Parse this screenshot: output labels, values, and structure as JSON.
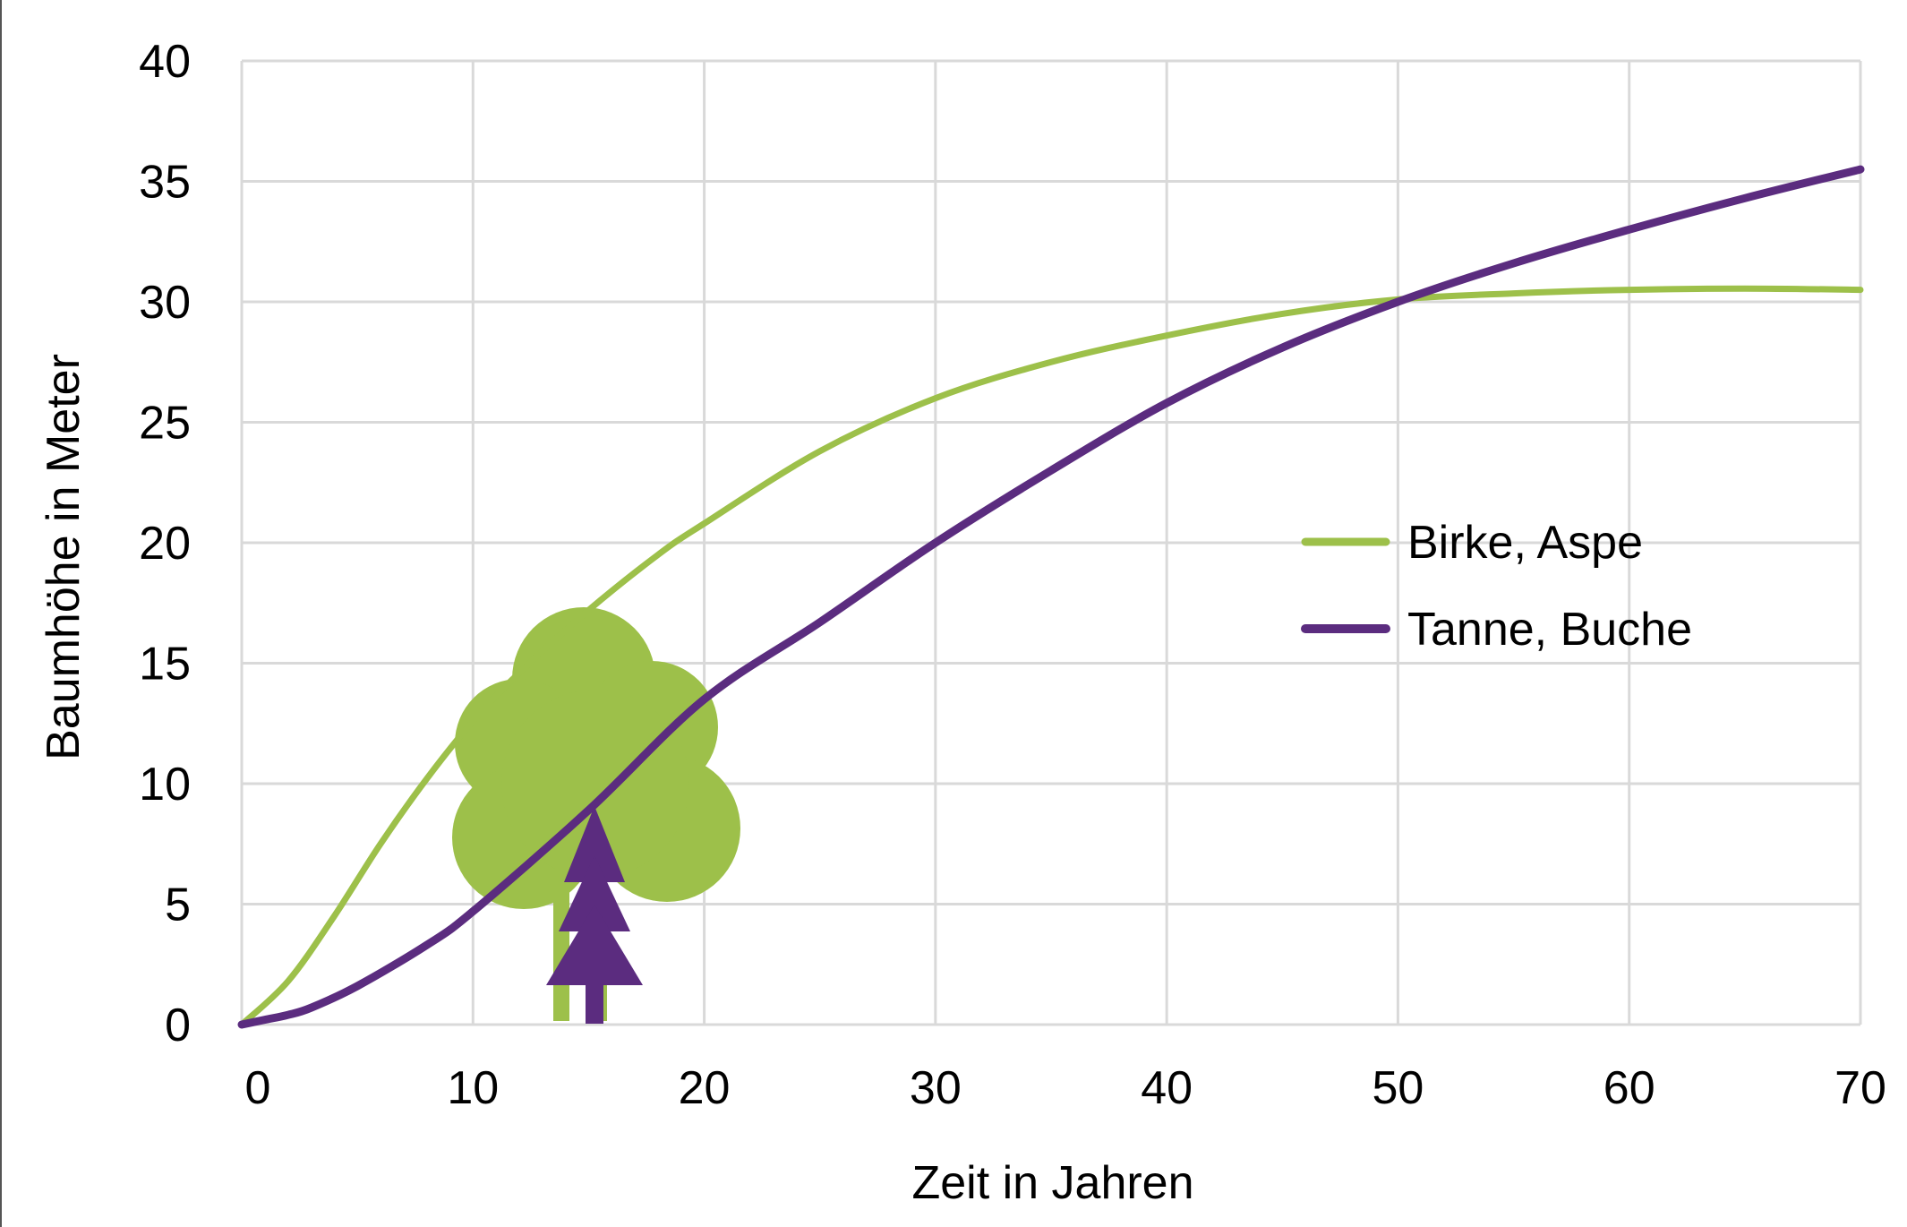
{
  "chart_data": {
    "type": "line",
    "title": "",
    "xlabel": "Zeit in Jahren",
    "ylabel": "Baumhöhe in Meter",
    "xlim": [
      0,
      70
    ],
    "ylim": [
      0,
      40
    ],
    "x_ticks": [
      0,
      10,
      20,
      30,
      40,
      50,
      60,
      70
    ],
    "y_ticks": [
      0,
      5,
      10,
      15,
      20,
      25,
      30,
      35,
      40
    ],
    "grid": true,
    "legend_position": "right",
    "series": [
      {
        "name": "Birke, Aspe",
        "color": "#9dc04a",
        "x": [
          0,
          2,
          4,
          6,
          8,
          10,
          12,
          15,
          18,
          20,
          25,
          30,
          35,
          40,
          45,
          50,
          55,
          60,
          65,
          70
        ],
        "y": [
          0,
          1.8,
          4.5,
          7.5,
          10.2,
          12.6,
          14.6,
          17.2,
          19.5,
          20.8,
          23.8,
          26.0,
          27.5,
          28.6,
          29.5,
          30.1,
          30.35,
          30.5,
          30.55,
          30.5
        ]
      },
      {
        "name": "Tanne, Buche",
        "color": "#5b2c7f",
        "x": [
          0,
          1,
          2,
          3,
          5,
          8,
          10,
          15,
          20,
          25,
          30,
          35,
          40,
          45,
          50,
          55,
          60,
          65,
          70
        ],
        "y": [
          0,
          0.2,
          0.4,
          0.7,
          1.6,
          3.3,
          4.7,
          8.9,
          13.5,
          16.7,
          20.0,
          23.0,
          25.8,
          28.1,
          30.0,
          31.6,
          33.0,
          34.3,
          35.5
        ]
      }
    ]
  },
  "illustration": {
    "deciduous_tree_icon": "deciduous-tree-icon",
    "conifer_tree_icon": "conifer-tree-icon"
  }
}
